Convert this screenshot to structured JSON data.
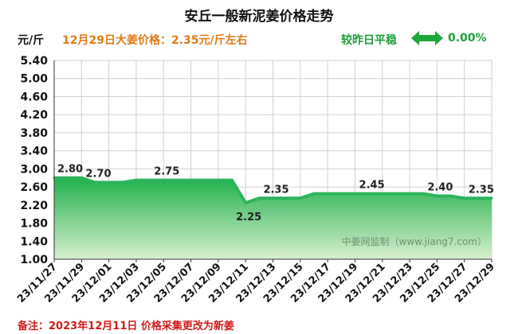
{
  "header": {
    "title": "安丘一般新泥姜价格走势",
    "unit": "元/斤",
    "price_note": "12月29日大姜价格：2.35元/斤左右",
    "change_label": "较昨日平稳",
    "change_value": "0.00%",
    "change_arrow_icon": "double-arrow-icon",
    "change_color": "#1f9e3a",
    "note_color": "#e07b17"
  },
  "watermark": "中姜网监制（www.jiang7.com）",
  "footnote": "备注：2023年12月11日 价格采集更改为新姜",
  "chart_data": {
    "type": "area",
    "title": "安丘一般新泥姜价格走势",
    "ylabel": "元/斤",
    "ylim": [
      1.0,
      5.4
    ],
    "yticks": [
      "1.00",
      "1.40",
      "1.80",
      "2.20",
      "2.60",
      "3.00",
      "3.40",
      "3.80",
      "4.20",
      "4.60",
      "5.00",
      "5.40"
    ],
    "x": [
      "23/11/27",
      "23/11/28",
      "23/11/29",
      "23/11/30",
      "23/12/01",
      "23/12/02",
      "23/12/03",
      "23/12/04",
      "23/12/05",
      "23/12/06",
      "23/12/07",
      "23/12/08",
      "23/12/09",
      "23/12/10",
      "23/12/11",
      "23/12/12",
      "23/12/13",
      "23/12/14",
      "23/12/15",
      "23/12/16",
      "23/12/17",
      "23/12/18",
      "23/12/19",
      "23/12/20",
      "23/12/21",
      "23/12/22",
      "23/12/23",
      "23/12/24",
      "23/12/25",
      "23/12/26",
      "23/12/27",
      "23/12/28",
      "23/12/29"
    ],
    "xtick_labels": [
      "23/11/27",
      "23/11/29",
      "23/12/01",
      "23/12/03",
      "23/12/05",
      "23/12/07",
      "23/12/09",
      "23/12/11",
      "23/12/13",
      "23/12/15",
      "23/12/17",
      "23/12/19",
      "23/12/21",
      "23/12/23",
      "23/12/25",
      "23/12/27",
      "23/12/29"
    ],
    "values": [
      2.8,
      2.8,
      2.8,
      2.7,
      2.7,
      2.7,
      2.75,
      2.75,
      2.75,
      2.75,
      2.75,
      2.75,
      2.75,
      2.75,
      2.25,
      2.35,
      2.35,
      2.35,
      2.35,
      2.45,
      2.45,
      2.45,
      2.45,
      2.45,
      2.45,
      2.45,
      2.45,
      2.45,
      2.4,
      2.4,
      2.35,
      2.35,
      2.35
    ],
    "data_labels": [
      {
        "x": "23/11/27",
        "label": "2.80"
      },
      {
        "x": "23/11/30",
        "label": "2.70"
      },
      {
        "x": "23/12/05",
        "label": "2.75"
      },
      {
        "x": "23/12/11",
        "label": "2.25"
      },
      {
        "x": "23/12/13",
        "label": "2.35"
      },
      {
        "x": "23/12/20",
        "label": "2.45"
      },
      {
        "x": "23/12/25",
        "label": "2.40"
      },
      {
        "x": "23/12/28",
        "label": "2.35"
      }
    ],
    "grid": true,
    "line_color": "#2db35a",
    "fill_color_top": "#22b14c",
    "fill_color_bottom": "#d8efd0"
  }
}
